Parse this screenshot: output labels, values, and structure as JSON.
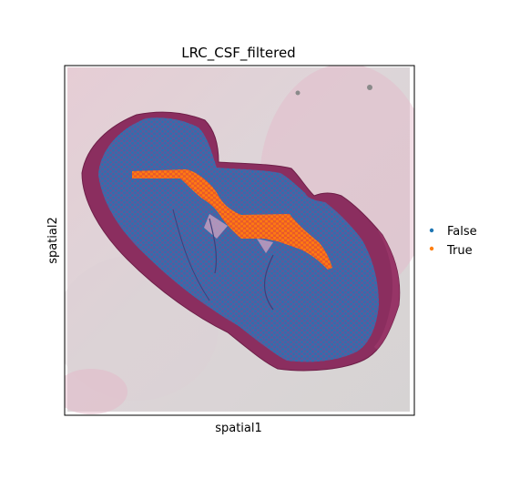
{
  "chart_data": {
    "type": "scatter",
    "title": "LRC_CSF_filtered",
    "xlabel": "spatial1",
    "ylabel": "spatial2",
    "grid": false,
    "legend_position": "right",
    "background_image": "tissue-histology-section",
    "series": [
      {
        "name": "False",
        "color": "#1f77b4"
      },
      {
        "name": "True",
        "color": "#ff7f0e"
      }
    ]
  }
}
